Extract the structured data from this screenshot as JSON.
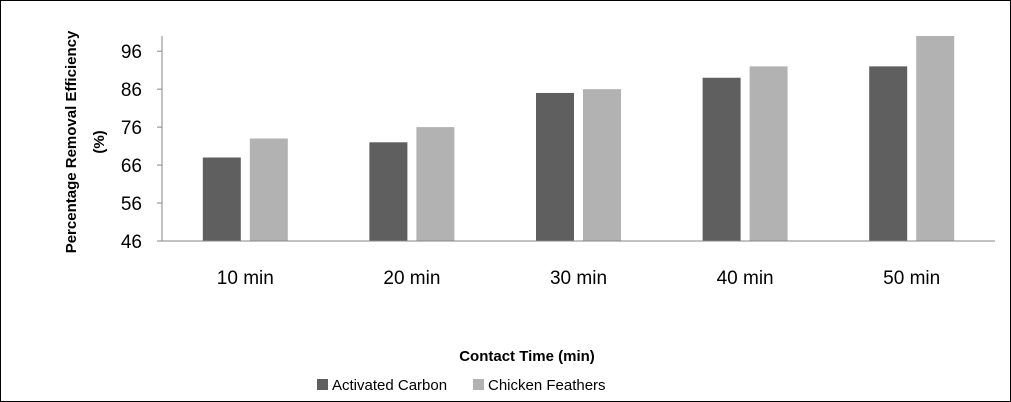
{
  "chart_data": {
    "type": "bar",
    "categories": [
      "10 min",
      "20 min",
      "30 min",
      "40 min",
      "50 min"
    ],
    "series": [
      {
        "name": "Activated Carbon",
        "values": [
          68,
          72,
          85,
          89,
          92
        ],
        "color": "#5f5f5f"
      },
      {
        "name": "Chicken Feathers",
        "values": [
          73,
          76,
          86,
          92,
          100
        ],
        "color": "#b2b2b2"
      }
    ],
    "title": "",
    "xlabel": "Contact Time (min)",
    "ylabel_line1": "Percentage Removal Efficiency",
    "ylabel_line2": "(%)",
    "ylim": [
      46,
      100
    ],
    "yticks": [
      46,
      56,
      66,
      76,
      86,
      96
    ],
    "grid": false,
    "legend_position": "bottom"
  }
}
